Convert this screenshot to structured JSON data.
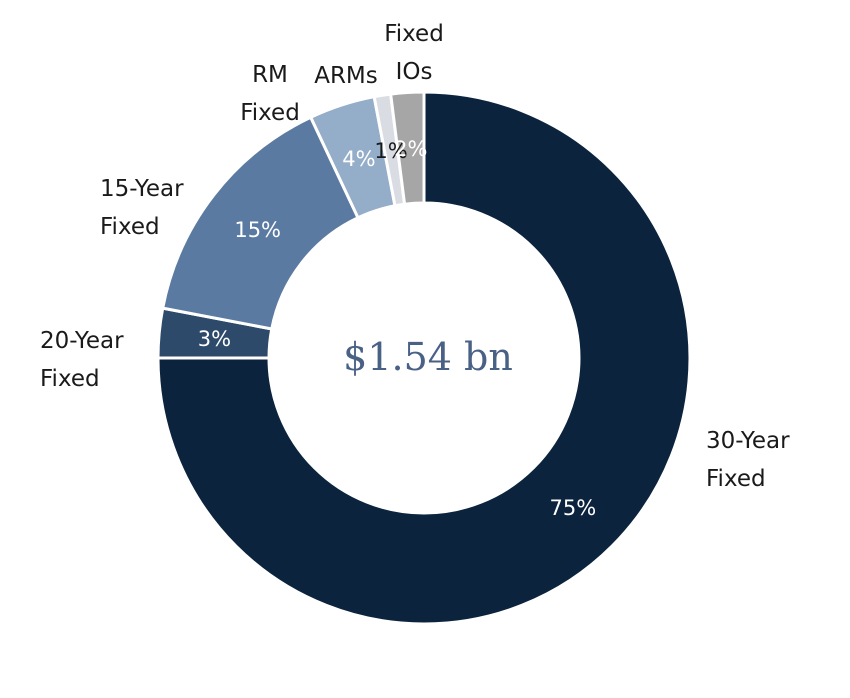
{
  "chart_data": {
    "type": "pie",
    "variant": "donut",
    "center_label": "$1.54 bn",
    "start_angle_deg": 0,
    "slices": [
      {
        "name": "30-Year Fixed",
        "name_lines": [
          "30-Year",
          "Fixed"
        ],
        "value": 75,
        "value_label": "75%",
        "color": "#0b233d",
        "label_color": "#ffffff"
      },
      {
        "name": "20-Year Fixed",
        "name_lines": [
          "20-Year",
          "Fixed"
        ],
        "value": 3,
        "value_label": "3%",
        "color": "#2e4a6b",
        "label_color": "#ffffff"
      },
      {
        "name": "15-Year Fixed",
        "name_lines": [
          "15-Year",
          "Fixed"
        ],
        "value": 15,
        "value_label": "15%",
        "color": "#5b7aa2",
        "label_color": "#ffffff"
      },
      {
        "name": "RM Fixed",
        "name_lines": [
          "RM",
          "Fixed"
        ],
        "value": 4,
        "value_label": "4%",
        "color": "#94adc9",
        "label_color": "#ffffff"
      },
      {
        "name": "ARMs",
        "name_lines": [
          "ARMs"
        ],
        "value": 1,
        "value_label": "1%",
        "color": "#d9dde3",
        "label_color": "#1a1a1a"
      },
      {
        "name": "Fixed IOs",
        "name_lines": [
          "Fixed",
          "IOs"
        ],
        "value": 2,
        "value_label": "2%",
        "color": "#a6a6a6",
        "label_color": "#ffffff"
      }
    ]
  }
}
